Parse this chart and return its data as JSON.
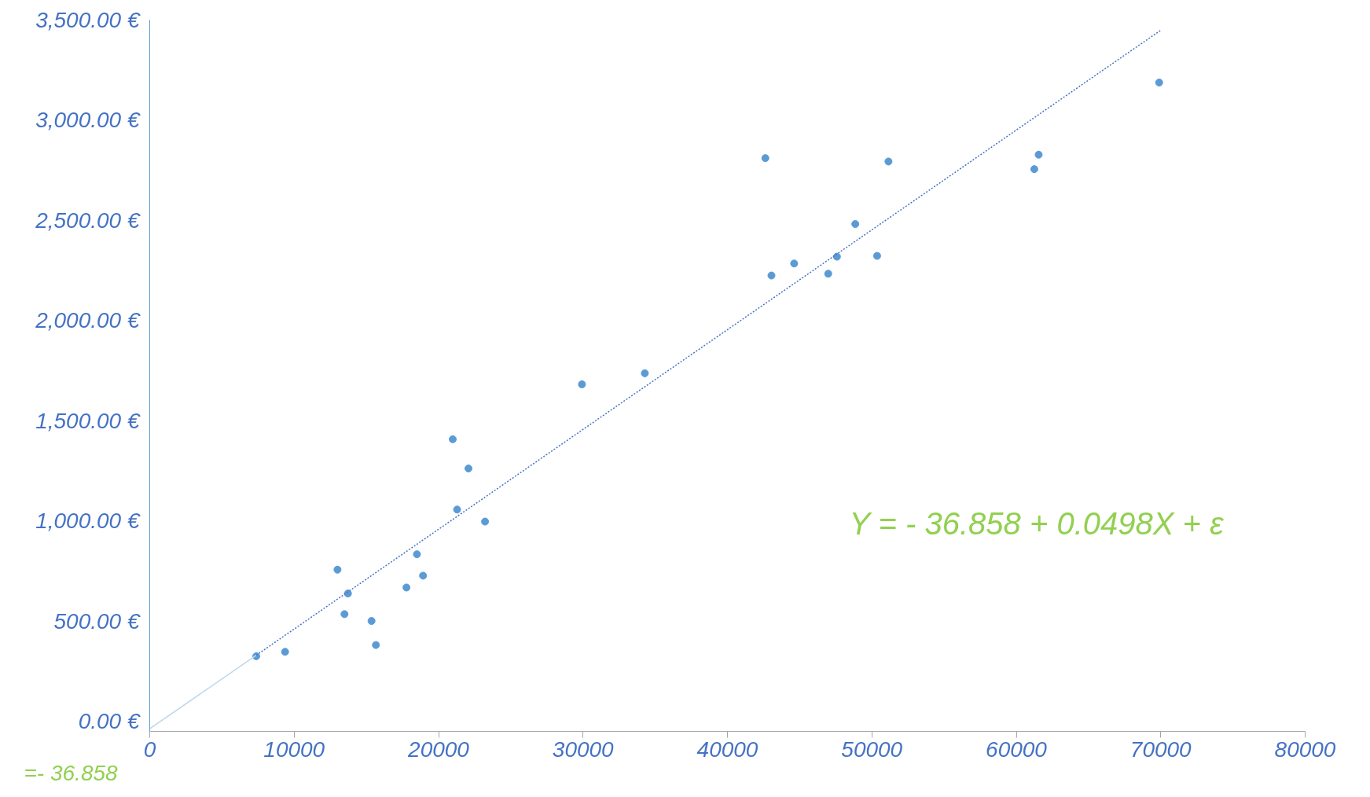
{
  "chart_data": {
    "type": "scatter",
    "xlim": [
      0,
      80000
    ],
    "ylim": [
      -50,
      3500
    ],
    "xticks": [
      0,
      10000,
      20000,
      30000,
      40000,
      50000,
      60000,
      70000,
      80000
    ],
    "yticks": [
      {
        "value": 0,
        "label": "0.00 €"
      },
      {
        "value": 500,
        "label": "500.00 €"
      },
      {
        "value": 1000,
        "label": "1,000.00 €"
      },
      {
        "value": 1500,
        "label": "1,500.00 €"
      },
      {
        "value": 2000,
        "label": "2,000.00 €"
      },
      {
        "value": 2500,
        "label": "2,500.00 €"
      },
      {
        "value": 3000,
        "label": "3,000.00 €"
      },
      {
        "value": 3500,
        "label": "3,500.00 €"
      }
    ],
    "grid": false,
    "marker": "circle",
    "series": [
      {
        "color": "#5b9bd5",
        "x": [
          7376,
          9371,
          13000,
          13483,
          13724,
          15357,
          15659,
          17775,
          18501,
          18924,
          20980,
          21282,
          22068,
          23216,
          29927,
          34280,
          42624,
          43047,
          44619,
          46977,
          47582,
          48851,
          50363,
          51149,
          61245,
          61548,
          69891
        ],
        "values": [
          325,
          347,
          757,
          535,
          638,
          501,
          381,
          668,
          834,
          727,
          1408,
          1057,
          1262,
          997,
          1682,
          1737,
          2811,
          2225,
          2285,
          2234,
          2319,
          2482,
          2323,
          2794,
          2756,
          2828,
          3188
        ]
      },
      {
        "type": "line",
        "marker": "none",
        "color": "#bdd7ee",
        "line_style": "solid",
        "x": [
          0,
          7376
        ],
        "values": [
          -37,
          330
        ]
      },
      {
        "type": "line",
        "marker": "none",
        "color": "#4472c4",
        "line_style": "dotted",
        "x": [
          7376,
          70000
        ],
        "values": [
          330,
          3449
        ]
      }
    ],
    "annotations": [
      "Y = - 36.858 + 0.0498X + ε",
      "=- 36.858"
    ]
  }
}
